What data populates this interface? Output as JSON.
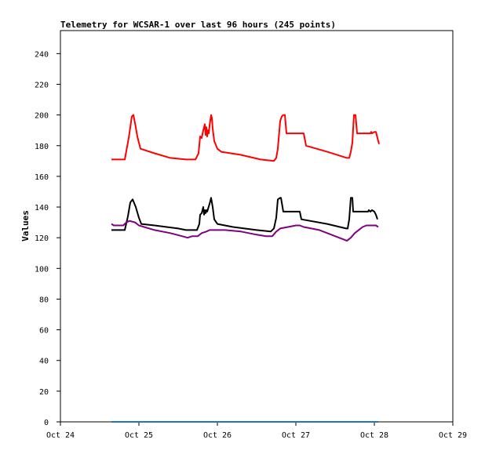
{
  "chart_data": {
    "type": "line",
    "title": "Telemetry for WCSAR-1 over last 96 hours (245 points)",
    "xlabel": "",
    "ylabel": "Values",
    "ylim": [
      0,
      255
    ],
    "yticks": [
      0,
      20,
      40,
      60,
      80,
      100,
      120,
      140,
      160,
      180,
      200,
      220,
      240
    ],
    "xlim": [
      "Oct 24",
      "Oct 29"
    ],
    "xticks": [
      "Oct 24",
      "Oct 25",
      "Oct 26",
      "Oct 27",
      "Oct 28",
      "Oct 29"
    ],
    "x_unit": "days",
    "grid": false,
    "legend": "none",
    "series": [
      {
        "color": "#ff0000",
        "points": [
          [
            24.65,
            171
          ],
          [
            24.82,
            171
          ],
          [
            24.87,
            185
          ],
          [
            24.91,
            199
          ],
          [
            24.93,
            200
          ],
          [
            24.96,
            192
          ],
          [
            24.98,
            186
          ],
          [
            25.02,
            178
          ],
          [
            25.2,
            175
          ],
          [
            25.4,
            172
          ],
          [
            25.6,
            171
          ],
          [
            25.72,
            171
          ],
          [
            25.76,
            175
          ],
          [
            25.78,
            186
          ],
          [
            25.8,
            185
          ],
          [
            25.82,
            190
          ],
          [
            25.84,
            194
          ],
          [
            25.85,
            187
          ],
          [
            25.86,
            192
          ],
          [
            25.87,
            186
          ],
          [
            25.88,
            190
          ],
          [
            25.89,
            188
          ],
          [
            25.9,
            193
          ],
          [
            25.92,
            200
          ],
          [
            25.93,
            198
          ],
          [
            25.94,
            191
          ],
          [
            25.96,
            183
          ],
          [
            26.0,
            178
          ],
          [
            26.05,
            176
          ],
          [
            26.3,
            174
          ],
          [
            26.55,
            171
          ],
          [
            26.72,
            170
          ],
          [
            26.75,
            172
          ],
          [
            26.77,
            178
          ],
          [
            26.8,
            196
          ],
          [
            26.82,
            199
          ],
          [
            26.84,
            200
          ],
          [
            26.86,
            200
          ],
          [
            26.88,
            188
          ],
          [
            27.02,
            188
          ],
          [
            27.1,
            188
          ],
          [
            27.13,
            180
          ],
          [
            27.4,
            176
          ],
          [
            27.65,
            172
          ],
          [
            27.68,
            172
          ],
          [
            27.7,
            176
          ],
          [
            27.72,
            182
          ],
          [
            27.74,
            200
          ],
          [
            27.76,
            200
          ],
          [
            27.78,
            188
          ],
          [
            27.95,
            188
          ],
          [
            27.96,
            189
          ],
          [
            27.97,
            188
          ],
          [
            28.0,
            189
          ],
          [
            28.02,
            189
          ],
          [
            28.04,
            185
          ],
          [
            28.06,
            181
          ]
        ]
      },
      {
        "color": "#000000",
        "points": [
          [
            24.65,
            125
          ],
          [
            24.82,
            125
          ],
          [
            24.86,
            134
          ],
          [
            24.89,
            143
          ],
          [
            24.92,
            145
          ],
          [
            24.96,
            140
          ],
          [
            25.0,
            133
          ],
          [
            25.03,
            129
          ],
          [
            25.2,
            128
          ],
          [
            25.5,
            126
          ],
          [
            25.6,
            125
          ],
          [
            25.74,
            125
          ],
          [
            25.77,
            129
          ],
          [
            25.78,
            135
          ],
          [
            25.8,
            136
          ],
          [
            25.82,
            140
          ],
          [
            25.83,
            135
          ],
          [
            25.84,
            138
          ],
          [
            25.85,
            136
          ],
          [
            25.86,
            138
          ],
          [
            25.87,
            137
          ],
          [
            25.9,
            142
          ],
          [
            25.92,
            146
          ],
          [
            25.94,
            140
          ],
          [
            25.96,
            132
          ],
          [
            26.0,
            129
          ],
          [
            26.2,
            127
          ],
          [
            26.5,
            125
          ],
          [
            26.68,
            124
          ],
          [
            26.72,
            126
          ],
          [
            26.75,
            133
          ],
          [
            26.77,
            145
          ],
          [
            26.8,
            146
          ],
          [
            26.81,
            146
          ],
          [
            26.84,
            137
          ],
          [
            27.02,
            137
          ],
          [
            27.05,
            137
          ],
          [
            27.07,
            132
          ],
          [
            27.4,
            129
          ],
          [
            27.64,
            126
          ],
          [
            27.66,
            126
          ],
          [
            27.68,
            132
          ],
          [
            27.7,
            146
          ],
          [
            27.72,
            146
          ],
          [
            27.73,
            137
          ],
          [
            27.9,
            137
          ],
          [
            27.92,
            137
          ],
          [
            27.93,
            138
          ],
          [
            27.95,
            137
          ],
          [
            27.97,
            138
          ],
          [
            28.0,
            137
          ],
          [
            28.02,
            135
          ],
          [
            28.04,
            132
          ]
        ]
      },
      {
        "color": "#800080",
        "points": [
          [
            24.65,
            129
          ],
          [
            24.68,
            128
          ],
          [
            24.8,
            128
          ],
          [
            24.84,
            130
          ],
          [
            24.88,
            131
          ],
          [
            24.95,
            130
          ],
          [
            25.0,
            128
          ],
          [
            25.2,
            125
          ],
          [
            25.4,
            123
          ],
          [
            25.55,
            121
          ],
          [
            25.62,
            120
          ],
          [
            25.68,
            121
          ],
          [
            25.75,
            121
          ],
          [
            25.8,
            123
          ],
          [
            25.86,
            124
          ],
          [
            25.9,
            125
          ],
          [
            25.95,
            125
          ],
          [
            26.1,
            125
          ],
          [
            26.3,
            124
          ],
          [
            26.5,
            122
          ],
          [
            26.62,
            121
          ],
          [
            26.7,
            121
          ],
          [
            26.75,
            124
          ],
          [
            26.8,
            126
          ],
          [
            26.9,
            127
          ],
          [
            27.0,
            128
          ],
          [
            27.05,
            128
          ],
          [
            27.1,
            127
          ],
          [
            27.3,
            125
          ],
          [
            27.5,
            121
          ],
          [
            27.6,
            119
          ],
          [
            27.65,
            118
          ],
          [
            27.7,
            120
          ],
          [
            27.75,
            123
          ],
          [
            27.8,
            125
          ],
          [
            27.85,
            127
          ],
          [
            27.9,
            128
          ],
          [
            28.0,
            128
          ],
          [
            28.02,
            128
          ],
          [
            28.05,
            127
          ]
        ]
      },
      {
        "color": "#1f77b4",
        "points": [
          [
            24.65,
            0
          ],
          [
            28.05,
            0
          ]
        ]
      }
    ]
  }
}
